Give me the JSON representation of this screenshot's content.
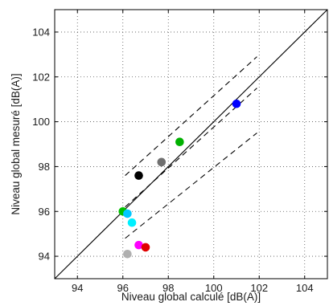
{
  "chart_data": {
    "type": "scatter",
    "title": "",
    "xlabel": "Niveau global calculé [dB(A)]",
    "ylabel": "Niveau global mesuré [dB(A)]",
    "xlim": [
      93,
      105
    ],
    "ylim": [
      93,
      105
    ],
    "xticks": [
      94,
      96,
      98,
      100,
      102,
      104
    ],
    "yticks": [
      94,
      96,
      98,
      100,
      102,
      104
    ],
    "grid": "dotted",
    "points": [
      {
        "x": 101.0,
        "y": 100.8,
        "color": "#0000ff"
      },
      {
        "x": 98.5,
        "y": 99.1,
        "color": "#00b000"
      },
      {
        "x": 97.7,
        "y": 98.2,
        "color": "#707070"
      },
      {
        "x": 96.7,
        "y": 97.6,
        "color": "#000000"
      },
      {
        "x": 96.0,
        "y": 96.0,
        "color": "#00c000"
      },
      {
        "x": 96.2,
        "y": 95.9,
        "color": "#00c8ff"
      },
      {
        "x": 96.4,
        "y": 95.5,
        "color": "#00f0ff"
      },
      {
        "x": 96.7,
        "y": 94.5,
        "color": "#ff00ff"
      },
      {
        "x": 97.0,
        "y": 94.4,
        "color": "#e00000"
      },
      {
        "x": 96.2,
        "y": 94.1,
        "color": "#b0b0b0"
      }
    ],
    "reference_line": {
      "label": "y = x",
      "style": "solid",
      "color": "#000000"
    },
    "regression_lines": [
      {
        "style": "dashed",
        "color": "#000000",
        "x": [
          96.1,
          101.9
        ],
        "y": [
          96.2,
          101.5
        ]
      },
      {
        "style": "dashed",
        "color": "#000000",
        "x": [
          96.1,
          101.9
        ],
        "y": [
          97.6,
          102.9
        ]
      },
      {
        "style": "dashed",
        "color": "#000000",
        "x": [
          96.1,
          101.9
        ],
        "y": [
          94.8,
          99.5
        ]
      }
    ]
  }
}
